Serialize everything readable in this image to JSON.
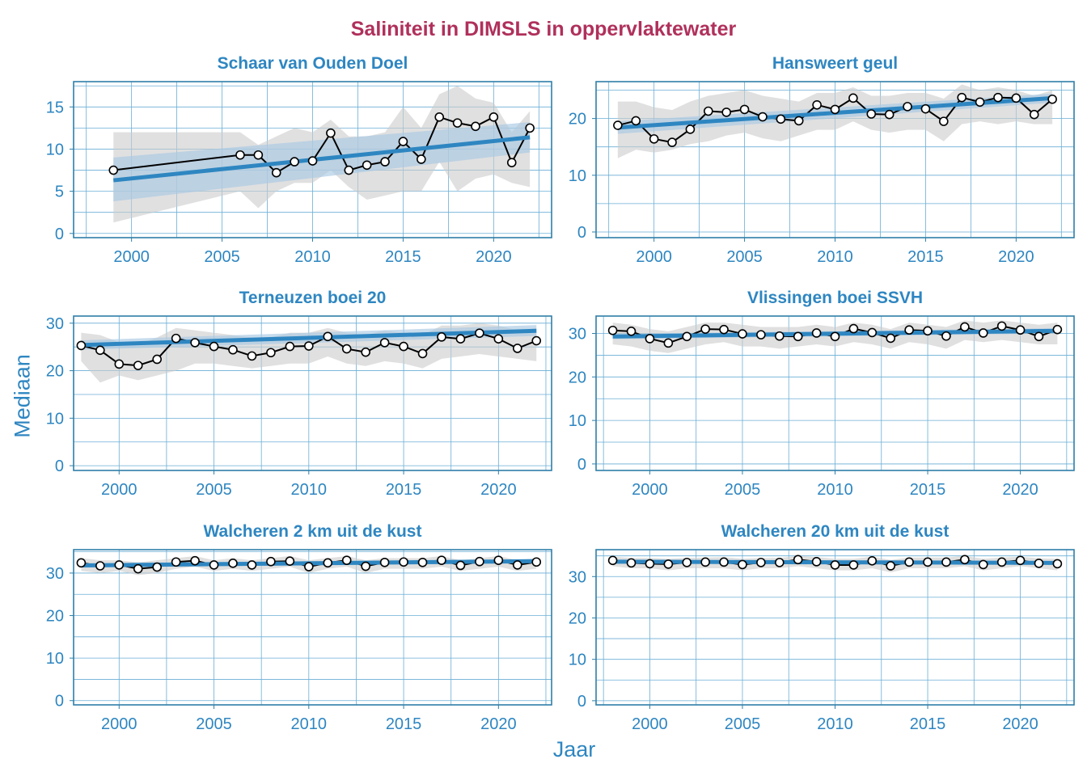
{
  "title": "Saliniteit in DIMSLS in oppervlaktewater",
  "ylabel": "Mediaan",
  "xlabel": "Jaar",
  "colors": {
    "title": "#b0305c",
    "axis_text": "#2e86c1",
    "panel_title": "#2e86c1",
    "frame": "#2f7fa8",
    "grid": "#6aaed6",
    "trend": "#2e86c1",
    "trend_band": "#a9c9e4",
    "range_band": "#cccccc",
    "series_line": "#000000"
  },
  "chart_data": [
    {
      "type": "line",
      "title": "Schaar van Ouden Doel",
      "xlim": [
        1996.8,
        2023.2
      ],
      "ylim": [
        -0.5,
        18
      ],
      "xticks": [
        2000,
        2005,
        2010,
        2015,
        2020
      ],
      "yticks": [
        0,
        5,
        10,
        15
      ],
      "points": [
        [
          1999,
          7.5
        ],
        [
          2006,
          9.3
        ],
        [
          2007,
          9.3
        ],
        [
          2008,
          7.2
        ],
        [
          2009,
          8.5
        ],
        [
          2010,
          8.6
        ],
        [
          2011,
          11.9
        ],
        [
          2012,
          7.5
        ],
        [
          2013,
          8.1
        ],
        [
          2014,
          8.5
        ],
        [
          2015,
          10.9
        ],
        [
          2016,
          8.8
        ],
        [
          2017,
          13.8
        ],
        [
          2018,
          13.1
        ],
        [
          2019,
          12.7
        ],
        [
          2020,
          13.8
        ],
        [
          2021,
          8.4
        ],
        [
          2022,
          12.5
        ]
      ],
      "range_band": {
        "x": [
          1999,
          2006,
          2007,
          2008,
          2009,
          2010,
          2011,
          2012,
          2013,
          2014,
          2015,
          2016,
          2017,
          2018,
          2019,
          2020,
          2021,
          2022
        ],
        "low": [
          1.3,
          5,
          3,
          5,
          6,
          6,
          7.5,
          5.5,
          4,
          4.5,
          5,
          5,
          8.5,
          5,
          6.5,
          7,
          6,
          5.5
        ],
        "high": [
          12,
          12,
          10.5,
          11.5,
          12.5,
          12,
          13.5,
          11.5,
          11.5,
          12,
          15,
          12.5,
          16.5,
          17.5,
          16,
          15.5,
          12,
          14.5
        ]
      },
      "trend": {
        "x": [
          1999,
          2022
        ],
        "y": [
          6.3,
          11.4
        ],
        "band_low": [
          3.8,
          9.6
        ],
        "band_high": [
          9,
          13.2
        ]
      }
    },
    {
      "type": "line",
      "title": "Hansweert geul",
      "xlim": [
        1996.8,
        2023.2
      ],
      "ylim": [
        -1,
        26.5
      ],
      "xticks": [
        2000,
        2005,
        2010,
        2015,
        2020
      ],
      "yticks": [
        0,
        10,
        20
      ],
      "points": [
        [
          1998,
          18.8
        ],
        [
          1999,
          19.6
        ],
        [
          2000,
          16.4
        ],
        [
          2001,
          15.8
        ],
        [
          2002,
          18.1
        ],
        [
          2003,
          21.3
        ],
        [
          2004,
          21.1
        ],
        [
          2005,
          21.6
        ],
        [
          2006,
          20.3
        ],
        [
          2007,
          19.9
        ],
        [
          2008,
          19.6
        ],
        [
          2009,
          22.4
        ],
        [
          2010,
          21.6
        ],
        [
          2011,
          23.6
        ],
        [
          2012,
          20.8
        ],
        [
          2013,
          20.7
        ],
        [
          2014,
          22.1
        ],
        [
          2015,
          21.7
        ],
        [
          2016,
          19.5
        ],
        [
          2017,
          23.7
        ],
        [
          2018,
          22.9
        ],
        [
          2019,
          23.7
        ],
        [
          2020,
          23.6
        ],
        [
          2021,
          20.7
        ],
        [
          2022,
          23.4
        ]
      ],
      "range_band": {
        "x": [
          1998,
          1999,
          2000,
          2001,
          2002,
          2003,
          2004,
          2005,
          2006,
          2007,
          2008,
          2009,
          2010,
          2011,
          2012,
          2013,
          2014,
          2015,
          2016,
          2017,
          2018,
          2019,
          2020,
          2021,
          2022
        ],
        "low": [
          13,
          14.5,
          14,
          14.5,
          15.5,
          16,
          17,
          17.5,
          16.5,
          16,
          17,
          18,
          18,
          19.5,
          18,
          17.5,
          18,
          18,
          16,
          19,
          19.5,
          19,
          19.5,
          19,
          19
        ],
        "high": [
          23,
          23,
          22,
          21.5,
          23,
          24,
          24.5,
          25,
          24,
          23.5,
          23,
          24.5,
          24.5,
          25.5,
          24,
          24,
          24.5,
          24.5,
          23.5,
          26,
          25,
          25.5,
          25,
          24,
          25
        ]
      },
      "trend": {
        "x": [
          1998,
          2022
        ],
        "y": [
          18.4,
          23.6
        ],
        "band_low": [
          17.3,
          22.8
        ],
        "band_high": [
          19.5,
          24.4
        ]
      }
    },
    {
      "type": "line",
      "title": "Terneuzen boei 20",
      "xlim": [
        1997.6,
        2022.8
      ],
      "ylim": [
        -1,
        31.5
      ],
      "xticks": [
        2000,
        2005,
        2010,
        2015,
        2020
      ],
      "yticks": [
        0,
        10,
        20,
        30
      ],
      "points": [
        [
          1998,
          25.3
        ],
        [
          1999,
          24.3
        ],
        [
          2000,
          21.4
        ],
        [
          2001,
          21.1
        ],
        [
          2002,
          22.4
        ],
        [
          2003,
          26.8
        ],
        [
          2004,
          25.9
        ],
        [
          2005,
          25.1
        ],
        [
          2006,
          24.4
        ],
        [
          2007,
          23.1
        ],
        [
          2008,
          23.8
        ],
        [
          2009,
          25.1
        ],
        [
          2010,
          25.2
        ],
        [
          2011,
          27.2
        ],
        [
          2012,
          24.6
        ],
        [
          2013,
          23.9
        ],
        [
          2014,
          25.9
        ],
        [
          2015,
          25.1
        ],
        [
          2016,
          23.6
        ],
        [
          2017,
          27.1
        ],
        [
          2018,
          26.7
        ],
        [
          2019,
          27.9
        ],
        [
          2020,
          26.7
        ],
        [
          2021,
          24.7
        ],
        [
          2022,
          26.3
        ]
      ],
      "range_band": {
        "x": [
          1998,
          1999,
          2000,
          2001,
          2002,
          2003,
          2004,
          2005,
          2006,
          2007,
          2008,
          2009,
          2010,
          2011,
          2012,
          2013,
          2014,
          2015,
          2016,
          2017,
          2018,
          2019,
          2020,
          2021,
          2022
        ],
        "low": [
          22,
          17.5,
          19,
          18,
          19,
          20,
          21.5,
          21.5,
          21,
          20.5,
          21,
          21.5,
          21.5,
          23,
          21.5,
          21,
          22,
          21.5,
          20.5,
          22.5,
          23,
          23.5,
          23,
          22.5,
          22
        ],
        "high": [
          28,
          27.5,
          26,
          25.5,
          27,
          29,
          28.5,
          28,
          27.5,
          27,
          27,
          28,
          28,
          29,
          28,
          27.5,
          28.5,
          28,
          27.5,
          29.5,
          29.5,
          30,
          29.5,
          28.5,
          29
        ]
      },
      "trend": {
        "x": [
          1998,
          2022
        ],
        "y": [
          25.4,
          28.4
        ],
        "band_low": [
          24.4,
          27.3
        ],
        "band_high": [
          26.4,
          29.6
        ]
      }
    },
    {
      "type": "line",
      "title": "Vlissingen boei SSVH",
      "xlim": [
        1997.1,
        2022.9
      ],
      "ylim": [
        -1.5,
        34
      ],
      "xticks": [
        2000,
        2005,
        2010,
        2015,
        2020
      ],
      "yticks": [
        0,
        10,
        20,
        30
      ],
      "points": [
        [
          1998,
          30.7
        ],
        [
          1999,
          30.5
        ],
        [
          2000,
          28.8
        ],
        [
          2001,
          27.8
        ],
        [
          2002,
          29.3
        ],
        [
          2003,
          31
        ],
        [
          2004,
          30.9
        ],
        [
          2005,
          29.9
        ],
        [
          2006,
          29.7
        ],
        [
          2007,
          29.4
        ],
        [
          2008,
          29.3
        ],
        [
          2009,
          30.1
        ],
        [
          2010,
          29.3
        ],
        [
          2011,
          31.1
        ],
        [
          2012,
          30.2
        ],
        [
          2013,
          28.9
        ],
        [
          2014,
          30.8
        ],
        [
          2015,
          30.6
        ],
        [
          2016,
          29.4
        ],
        [
          2017,
          31.5
        ],
        [
          2018,
          30.1
        ],
        [
          2019,
          31.7
        ],
        [
          2020,
          30.8
        ],
        [
          2021,
          29.3
        ],
        [
          2022,
          30.9
        ]
      ],
      "range_band": {
        "x": [
          1998,
          1999,
          2000,
          2001,
          2002,
          2003,
          2004,
          2005,
          2006,
          2007,
          2008,
          2009,
          2010,
          2011,
          2012,
          2013,
          2014,
          2015,
          2016,
          2017,
          2018,
          2019,
          2020,
          2021,
          2022
        ],
        "low": [
          27.5,
          27,
          26,
          25.5,
          26.5,
          27.5,
          28,
          27,
          27,
          26.5,
          27,
          27.5,
          27,
          28,
          27.5,
          26.5,
          28,
          27.5,
          26.5,
          28.5,
          28,
          28.5,
          28,
          27.5,
          27.5
        ],
        "high": [
          32.5,
          32,
          31,
          30.5,
          31.5,
          32.5,
          32.5,
          32,
          31.5,
          31.5,
          31.5,
          32,
          31.5,
          32.5,
          32,
          31,
          32.5,
          32,
          31.5,
          33,
          32.5,
          33,
          32.5,
          32,
          32.5
        ]
      },
      "trend": {
        "x": [
          1998,
          2022
        ],
        "y": [
          29.3,
          30.6
        ],
        "band_low": [
          28.7,
          30
        ],
        "band_high": [
          29.9,
          31.2
        ]
      }
    },
    {
      "type": "line",
      "title": "Walcheren 2 km uit de kust",
      "xlim": [
        1997.6,
        2022.8
      ],
      "ylim": [
        -1,
        35.5
      ],
      "xticks": [
        2000,
        2005,
        2010,
        2015,
        2020
      ],
      "yticks": [
        0,
        10,
        20,
        30
      ],
      "points": [
        [
          1998,
          32.4
        ],
        [
          1999,
          31.7
        ],
        [
          2000,
          31.9
        ],
        [
          2001,
          31
        ],
        [
          2002,
          31.4
        ],
        [
          2003,
          32.6
        ],
        [
          2004,
          32.9
        ],
        [
          2005,
          31.9
        ],
        [
          2006,
          32.3
        ],
        [
          2007,
          31.9
        ],
        [
          2008,
          32.7
        ],
        [
          2009,
          32.8
        ],
        [
          2010,
          31.5
        ],
        [
          2011,
          32.4
        ],
        [
          2012,
          33
        ],
        [
          2013,
          31.6
        ],
        [
          2014,
          32.5
        ],
        [
          2015,
          32.6
        ],
        [
          2016,
          32.5
        ],
        [
          2017,
          33
        ],
        [
          2018,
          31.8
        ],
        [
          2019,
          32.7
        ],
        [
          2020,
          33
        ],
        [
          2021,
          31.9
        ],
        [
          2022,
          32.6
        ]
      ],
      "range_band": {
        "x": [
          1998,
          1999,
          2000,
          2001,
          2002,
          2003,
          2004,
          2005,
          2006,
          2007,
          2008,
          2009,
          2010,
          2011,
          2012,
          2013,
          2014,
          2015,
          2016,
          2017,
          2018,
          2019,
          2020,
          2021,
          2022
        ],
        "low": [
          30.5,
          30,
          30.5,
          29.5,
          30,
          31,
          31.5,
          30.5,
          31,
          30.5,
          31,
          31.5,
          30,
          31,
          31.5,
          30,
          31,
          31,
          31,
          31.5,
          30.5,
          31,
          31.5,
          30.5,
          31
        ],
        "high": [
          33.5,
          33,
          33,
          32.5,
          33,
          33.5,
          34,
          33,
          33.5,
          33,
          33.5,
          34,
          33,
          33.5,
          34,
          33,
          33.5,
          33.5,
          33.5,
          34,
          33,
          33.5,
          34,
          33,
          33.5
        ]
      },
      "trend": {
        "x": [
          1998,
          2022
        ],
        "y": [
          31.8,
          32.8
        ],
        "band_low": [
          31.3,
          32.3
        ],
        "band_high": [
          32.3,
          33.3
        ]
      }
    },
    {
      "type": "line",
      "title": "Walcheren 20 km uit de kust",
      "xlim": [
        1997.1,
        2022.9
      ],
      "ylim": [
        -1,
        36.5
      ],
      "xticks": [
        2000,
        2005,
        2010,
        2015,
        2020
      ],
      "yticks": [
        0,
        10,
        20,
        30
      ],
      "points": [
        [
          1998,
          33.9
        ],
        [
          1999,
          33.3
        ],
        [
          2000,
          33.1
        ],
        [
          2001,
          33
        ],
        [
          2002,
          33.4
        ],
        [
          2003,
          33.5
        ],
        [
          2004,
          33.5
        ],
        [
          2005,
          32.9
        ],
        [
          2006,
          33.4
        ],
        [
          2007,
          33.4
        ],
        [
          2008,
          34.1
        ],
        [
          2009,
          33.6
        ],
        [
          2010,
          32.8
        ],
        [
          2011,
          32.8
        ],
        [
          2012,
          33.8
        ],
        [
          2013,
          32.6
        ],
        [
          2014,
          33.5
        ],
        [
          2015,
          33.5
        ],
        [
          2016,
          33.5
        ],
        [
          2017,
          34.1
        ],
        [
          2018,
          32.9
        ],
        [
          2019,
          33.5
        ],
        [
          2020,
          33.9
        ],
        [
          2021,
          33.2
        ],
        [
          2022,
          33.1
        ]
      ],
      "range_band": {
        "x": [
          1998,
          1999,
          2000,
          2001,
          2002,
          2003,
          2004,
          2005,
          2006,
          2007,
          2008,
          2009,
          2010,
          2011,
          2012,
          2013,
          2014,
          2015,
          2016,
          2017,
          2018,
          2019,
          2020,
          2021,
          2022
        ],
        "low": [
          32.5,
          32,
          32,
          31.5,
          32,
          32,
          32,
          31.5,
          32,
          32,
          32.5,
          32,
          31.5,
          31.5,
          32,
          31,
          32,
          32,
          32,
          32.5,
          31.5,
          32,
          32.5,
          32,
          31.5
        ],
        "high": [
          34.8,
          34.5,
          34.5,
          34.3,
          34.5,
          34.6,
          34.7,
          34.3,
          34.5,
          34.5,
          35,
          34.7,
          34.3,
          34.3,
          34.8,
          34,
          34.6,
          34.6,
          34.6,
          35,
          34.3,
          34.6,
          34.8,
          34.4,
          34.3
        ]
      },
      "trend": {
        "x": [
          1998,
          2022
        ],
        "y": [
          33.6,
          33.3
        ],
        "band_low": [
          33.2,
          32.9
        ],
        "band_high": [
          34,
          33.7
        ]
      }
    }
  ]
}
